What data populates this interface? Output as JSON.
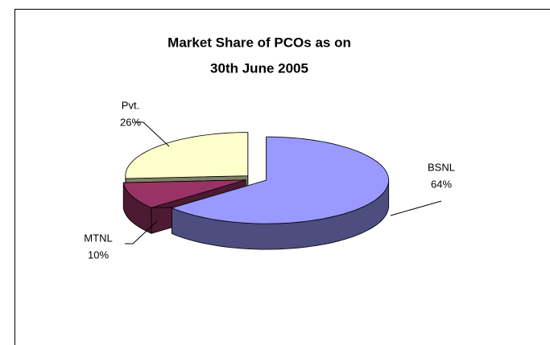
{
  "chart_data": {
    "type": "pie3d",
    "title": [
      "Market Share of PCOs as on",
      "30th June 2005"
    ],
    "categories": [
      "BSNL",
      "MTNL",
      "Pvt."
    ],
    "values": [
      64,
      10,
      26
    ],
    "value_labels": [
      "64%",
      "10%",
      "26%"
    ],
    "colors": [
      "#9999ff",
      "#993366",
      "#ffffcc"
    ]
  }
}
